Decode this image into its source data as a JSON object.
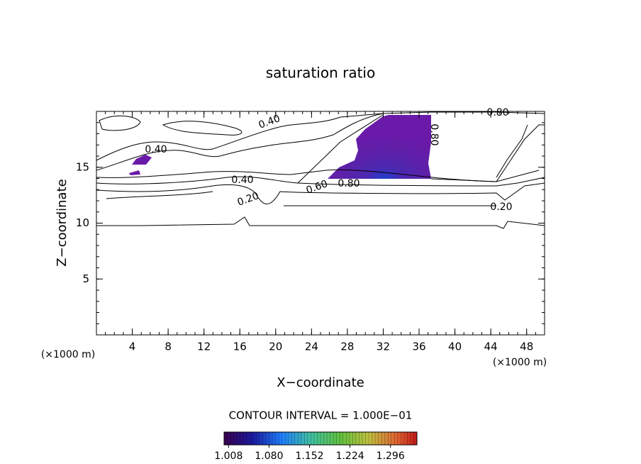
{
  "chart_data": {
    "type": "contour",
    "title": "saturation ratio",
    "x_label": "X−coordinate",
    "y_label": "Z−coordinate",
    "x_unit": "(×1000 m)",
    "y_unit": "(×1000 m)",
    "xlim": [
      0,
      50
    ],
    "xticks": [
      4,
      8,
      12,
      16,
      20,
      24,
      28,
      32,
      36,
      40,
      44,
      48
    ],
    "ylim": [
      0,
      20
    ],
    "yticks": [
      5,
      10,
      15
    ],
    "contour_labels": [
      "0.40",
      "0.40",
      "0.40",
      "0.20",
      "0.60",
      "0.80",
      "0.80",
      "0.80",
      "0.20"
    ],
    "contour_note": "CONTOUR INTERVAL = 1.000E−01",
    "colorbar": {
      "lim": [
        1.0,
        1.343
      ],
      "ticks": [
        {
          "value": 1.008,
          "label": "1.008"
        },
        {
          "value": 1.08,
          "label": "1.080"
        },
        {
          "value": 1.152,
          "label": "1.152"
        },
        {
          "value": 1.224,
          "label": "1.224"
        },
        {
          "value": 1.296,
          "label": "1.296"
        }
      ]
    }
  }
}
